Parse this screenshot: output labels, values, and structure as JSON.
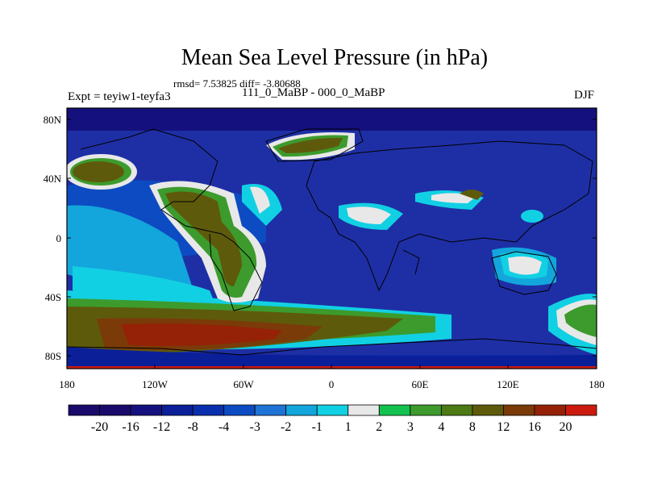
{
  "title": "Mean Sea Level Pressure (in hPa)",
  "stats_line": "rmsd= 7.53825 diff= -3.80688",
  "left_label": "Expt = teyiw1-teyfa3",
  "center_label": "111_0_MaBP - 000_0_MaBP",
  "right_label": "DJF",
  "y_ticks": [
    "80N",
    "40N",
    "0",
    "40S",
    "80S"
  ],
  "x_ticks": [
    "180",
    "120W",
    "60W",
    "0",
    "60E",
    "120E",
    "180"
  ],
  "colorbar": {
    "labels": [
      "-20",
      "-16",
      "-12",
      "-8",
      "-4",
      "-3",
      "-2",
      "-1",
      "1",
      "2",
      "3",
      "4",
      "8",
      "12",
      "16",
      "20"
    ],
    "colors": [
      "#1a0a6b",
      "#14117f",
      "#0b1f99",
      "#0a2fae",
      "#0d4bc2",
      "#1f73d6",
      "#13a6dc",
      "#12d0e3",
      "#e8e8e8",
      "#13c24e",
      "#3c9b2c",
      "#4d7a14",
      "#5e5a0c",
      "#7a3b08",
      "#952206",
      "#cc1b0e"
    ]
  },
  "palette": {
    "ocean_deep": "#1e2fa5",
    "ocean_mid": "#0d4bc2",
    "background": "#1a0a6b"
  }
}
